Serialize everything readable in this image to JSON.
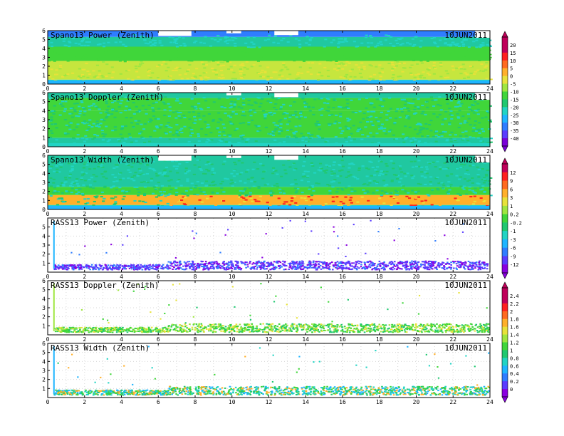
{
  "colors": {
    "power_palette": [
      "#7a00d8",
      "#5a3cff",
      "#2f7dff",
      "#1fb5ff",
      "#22d4c4",
      "#20c870",
      "#40d63a",
      "#9fe640",
      "#e7e23a",
      "#ffb02a",
      "#ff6a20",
      "#ff2020",
      "#c0005a"
    ],
    "width_palette": [
      "#8a00e0",
      "#5a3cff",
      "#2f7dff",
      "#1fb5ff",
      "#22d4c4",
      "#20c870",
      "#40d63a",
      "#9fe640",
      "#e7e23a",
      "#ffb02a",
      "#ff6a20",
      "#ff2020",
      "#c0005a"
    ],
    "rass_palette": [
      "#8a00e0",
      "#5a3cff",
      "#2f7dff",
      "#1fb5ff",
      "#22d4c4",
      "#20c870",
      "#40d63a",
      "#9fe640",
      "#e7e23a",
      "#ffb02a",
      "#ff6a20",
      "#ff2020",
      "#c0005a"
    ]
  },
  "chart_data": [
    {
      "type": "heatmap",
      "title": "Spano13 Power (Zenith)",
      "date": "10JUN2011",
      "xlim": [
        0,
        24
      ],
      "ylim": [
        0,
        6
      ],
      "x_ticks": [
        0,
        2,
        4,
        6,
        8,
        10,
        12,
        14,
        16,
        18,
        20,
        22,
        24
      ],
      "y_ticks": [
        0,
        1,
        2,
        3,
        4,
        5,
        6
      ],
      "field": "power",
      "layers": [
        {
          "z_from": 0.0,
          "z_to": 0.5,
          "level": "cyan"
        },
        {
          "z_from": 0.5,
          "z_to": 2.6,
          "level": "yellow-green"
        },
        {
          "z_from": 2.6,
          "z_to": 4.2,
          "level": "green"
        },
        {
          "z_from": 4.2,
          "z_to": 5.3,
          "level": "teal"
        },
        {
          "z_from": 5.3,
          "z_to": 6.0,
          "level": "blue"
        }
      ],
      "gaps": [
        [
          6.0,
          7.8,
          5.4,
          6.0
        ],
        [
          9.7,
          10.5,
          5.7,
          6.0
        ],
        [
          12.3,
          13.6,
          5.5,
          6.0
        ],
        [
          23.2,
          24.0,
          5.2,
          6.0
        ]
      ]
    },
    {
      "type": "heatmap",
      "title": "Spano13 Doppler (Zenith)",
      "date": "10JUN2011",
      "xlim": [
        0,
        24
      ],
      "ylim": [
        0,
        6
      ],
      "x_ticks": [
        0,
        2,
        4,
        6,
        8,
        10,
        12,
        14,
        16,
        18,
        20,
        22,
        24
      ],
      "y_ticks": [
        0,
        1,
        2,
        3,
        4,
        5,
        6
      ],
      "field": "doppler",
      "layers": [
        {
          "z_from": 0.0,
          "z_to": 1.0,
          "level": "teal"
        },
        {
          "z_from": 1.0,
          "z_to": 4.0,
          "level": "green"
        },
        {
          "z_from": 4.0,
          "z_to": 5.4,
          "level": "green"
        },
        {
          "z_from": 5.4,
          "z_to": 6.0,
          "level": "teal"
        }
      ],
      "gaps": [
        [
          9.7,
          10.5,
          5.7,
          6.0
        ],
        [
          12.3,
          13.6,
          5.5,
          6.0
        ],
        [
          23.2,
          24.0,
          5.2,
          6.0
        ]
      ]
    },
    {
      "type": "heatmap",
      "title": "Spano13 Width (Zenith)",
      "date": "10JUN2011",
      "xlim": [
        0,
        24
      ],
      "ylim": [
        0,
        6
      ],
      "x_ticks": [
        0,
        2,
        4,
        6,
        8,
        10,
        12,
        14,
        16,
        18,
        20,
        22,
        24
      ],
      "y_ticks": [
        0,
        1,
        2,
        3,
        4,
        5,
        6
      ],
      "field": "width",
      "layers": [
        {
          "z_from": 0.0,
          "z_to": 0.5,
          "level": "cyan"
        },
        {
          "z_from": 0.5,
          "z_to": 1.6,
          "level": "orange"
        },
        {
          "z_from": 1.6,
          "z_to": 2.5,
          "level": "green"
        },
        {
          "z_from": 2.5,
          "z_to": 6.0,
          "level": "teal"
        }
      ],
      "gaps": [
        [
          6.0,
          7.8,
          5.4,
          6.0
        ],
        [
          9.7,
          10.5,
          5.7,
          6.0
        ],
        [
          12.3,
          13.6,
          5.5,
          6.0
        ],
        [
          23.2,
          24.0,
          5.2,
          6.0
        ]
      ]
    },
    {
      "type": "heatmap",
      "title": "RASS13 Power (Zenith)",
      "date": "10JUN2011",
      "xlim": [
        0,
        24
      ],
      "ylim": [
        0,
        6
      ],
      "x_ticks": [
        0,
        2,
        4,
        6,
        8,
        10,
        12,
        14,
        16,
        18,
        20,
        22,
        24
      ],
      "y_ticks": [
        1,
        2,
        3,
        4,
        5
      ],
      "field": "rass_power",
      "band": [
        0.4,
        1.2
      ]
    },
    {
      "type": "heatmap",
      "title": "RASS13 Doppler (Zenith)",
      "date": "10JUN2011",
      "xlim": [
        0,
        24
      ],
      "ylim": [
        0,
        6
      ],
      "x_ticks": [
        0,
        2,
        4,
        6,
        8,
        10,
        12,
        14,
        16,
        18,
        20,
        22,
        24
      ],
      "y_ticks": [
        1,
        2,
        3,
        4,
        5,
        6
      ],
      "field": "rass_doppler",
      "band": [
        0.4,
        1.2
      ]
    },
    {
      "type": "heatmap",
      "title": "RASS13 Width (Zenith)",
      "date": "10JUN2011",
      "xlim": [
        0,
        24
      ],
      "ylim": [
        0,
        6
      ],
      "x_ticks": [
        0,
        2,
        4,
        6,
        8,
        10,
        12,
        14,
        16,
        18,
        20,
        22,
        24
      ],
      "y_ticks": [
        1,
        2,
        3,
        4,
        5,
        6
      ],
      "field": "rass_width",
      "band": [
        0.4,
        1.2
      ]
    }
  ],
  "colorbars": [
    {
      "labels": [
        "20",
        "15",
        "10",
        "5",
        "0",
        "-5",
        "-10",
        "-15",
        "-20",
        "-25",
        "-30",
        "-35",
        "-40"
      ]
    },
    {
      "labels": [
        "12",
        "9",
        "6",
        "3",
        "1",
        "0.2",
        "-0.2",
        "-1",
        "-3",
        "-6",
        "-9",
        "-12"
      ]
    },
    {
      "labels": [
        "2.4",
        "2.2",
        "2",
        "1.8",
        "1.6",
        "1.4",
        "1.2",
        "1",
        "0.8",
        "0.6",
        "0.4",
        "0.2",
        "0"
      ]
    }
  ]
}
